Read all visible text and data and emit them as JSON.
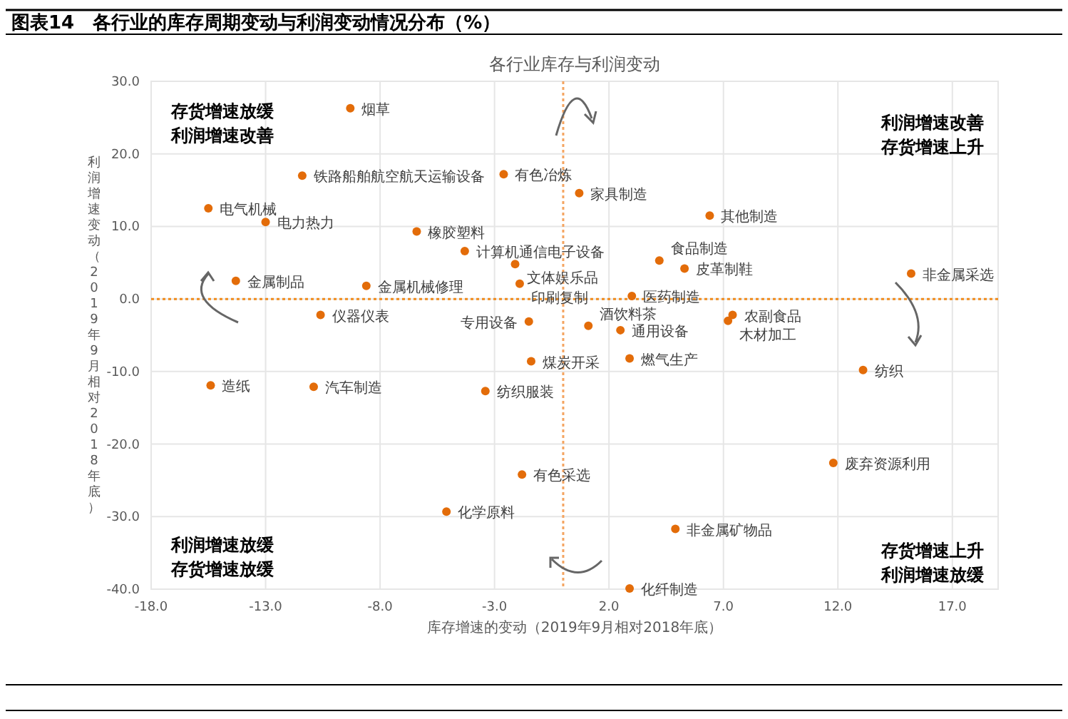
{
  "chart_data": {
    "type": "scatter",
    "title": "图表14　各行业的库存周期变动与利润变动情况分布（%）",
    "subtitle": "各行业库存与利润变动",
    "xlabel": "库存增速的变动（2019年9月相对2018年底）",
    "ylabel": "利润增速变动（2019年9月相对2018年底）",
    "xlim": [
      -18,
      19
    ],
    "ylim": [
      -40,
      30
    ],
    "xticks": [
      {
        "value": -18,
        "label": "-18.0"
      },
      {
        "value": -13,
        "label": "-13.0"
      },
      {
        "value": -8,
        "label": "-8.0"
      },
      {
        "value": -3,
        "label": "-3.0"
      },
      {
        "value": 2,
        "label": "2.0"
      },
      {
        "value": 7,
        "label": "7.0"
      },
      {
        "value": 12,
        "label": "12.0"
      },
      {
        "value": 17,
        "label": "17.0"
      }
    ],
    "yticks": [
      {
        "value": -40,
        "label": "-40.0"
      },
      {
        "value": -30,
        "label": "-30.0"
      },
      {
        "value": -20,
        "label": "-20.0"
      },
      {
        "value": -10,
        "label": "-10.0"
      },
      {
        "value": 0,
        "label": "0.0"
      },
      {
        "value": 10,
        "label": "10.0"
      },
      {
        "value": 20,
        "label": "20.0"
      },
      {
        "value": 30,
        "label": "30.0"
      }
    ],
    "grid": true,
    "marker": "circle",
    "series": [
      {
        "color": "#e36c09",
        "x": [
          -9.3,
          -11.4,
          -2.6,
          -15.5,
          -13.0,
          -6.4,
          -4.3,
          -2.1,
          -1.9,
          -14.3,
          -8.6,
          -10.6,
          -1.5,
          0.7,
          6.4,
          4.2,
          5.3,
          15.2,
          3.0,
          7.4,
          7.2,
          1.1,
          2.5,
          -1.4,
          2.9,
          13.1,
          -15.4,
          -10.9,
          -3.4,
          -1.8,
          -5.1,
          11.8,
          4.9,
          2.9
        ],
        "values": [
          26.3,
          17.0,
          17.2,
          12.5,
          10.6,
          9.3,
          6.6,
          4.8,
          2.1,
          2.5,
          1.8,
          -2.2,
          -3.1,
          14.6,
          11.5,
          5.3,
          4.2,
          3.5,
          0.4,
          -2.2,
          -3.0,
          -3.7,
          -4.3,
          -8.6,
          -8.2,
          -9.8,
          -11.9,
          -12.1,
          -12.7,
          -24.2,
          -29.3,
          -22.6,
          -31.7,
          -39.9
        ]
      }
    ],
    "ref_lines": [
      {
        "axis": "x",
        "value": 0,
        "color": "#f4a460",
        "line_style": "dotted"
      },
      {
        "axis": "y",
        "value": 0,
        "color": "#f08a1c",
        "line_style": "dotted"
      }
    ],
    "annotations": [
      "存货增速放缓利润增速改善",
      "利润增速改善存货增速上升",
      "利润增速放缓存货增速放缓",
      "存货增速上升利润增速放缓",
      {
        "text": "烟草",
        "x": -9.3,
        "y": 26.3
      },
      {
        "text": "铁路船舶航空航天运输设备",
        "x": -11.4,
        "y": 17.0
      },
      {
        "text": "有色冶炼",
        "x": -2.6,
        "y": 17.2
      },
      {
        "text": "电气机械",
        "x": -15.5,
        "y": 12.5
      },
      {
        "text": "电力热力",
        "x": -13.0,
        "y": 10.6
      },
      {
        "text": "橡胶塑料",
        "x": -6.4,
        "y": 9.3
      },
      {
        "text": "计算机通信电子设备",
        "x": -4.3,
        "y": 6.6
      },
      {
        "text": "文体娱乐品",
        "x": -2.1,
        "y": 4.8
      },
      {
        "text": "印刷复制",
        "x": -1.9,
        "y": 2.1
      },
      {
        "text": "金属制品",
        "x": -14.3,
        "y": 2.5
      },
      {
        "text": "金属机械修理",
        "x": -8.6,
        "y": 1.8
      },
      {
        "text": "仪器仪表",
        "x": -10.6,
        "y": -2.2
      },
      {
        "text": "专用设备",
        "x": -1.5,
        "y": -3.1
      },
      {
        "text": "家具制造",
        "x": 0.7,
        "y": 14.6
      },
      {
        "text": "其他制造",
        "x": 6.4,
        "y": 11.5
      },
      {
        "text": "食品制造",
        "x": 4.2,
        "y": 5.3
      },
      {
        "text": "皮革制鞋",
        "x": 5.3,
        "y": 4.2
      },
      {
        "text": "非金属采选",
        "x": 15.2,
        "y": 3.5
      },
      {
        "text": "医药制造",
        "x": 3.0,
        "y": 0.4
      },
      {
        "text": "农副食品",
        "x": 7.4,
        "y": -2.2
      },
      {
        "text": "木材加工",
        "x": 7.2,
        "y": -3.0
      },
      {
        "text": "酒饮料茶",
        "x": 1.1,
        "y": -3.7
      },
      {
        "text": "通用设备",
        "x": 2.5,
        "y": -4.3
      },
      {
        "text": "煤炭开采",
        "x": -1.4,
        "y": -8.6
      },
      {
        "text": "燃气生产",
        "x": 2.9,
        "y": -8.2
      },
      {
        "text": "纺织",
        "x": 13.1,
        "y": -9.8
      },
      {
        "text": "造纸",
        "x": -15.4,
        "y": -11.9
      },
      {
        "text": "汽车制造",
        "x": -10.9,
        "y": -12.1
      },
      {
        "text": "纺织服装",
        "x": -3.4,
        "y": -12.7
      },
      {
        "text": "有色采选",
        "x": -1.8,
        "y": -24.2
      },
      {
        "text": "化学原料",
        "x": -5.1,
        "y": -29.3
      },
      {
        "text": "废弃资源利用",
        "x": 11.8,
        "y": -22.6
      },
      {
        "text": "非金属矿物品",
        "x": 4.9,
        "y": -31.7
      },
      {
        "text": "化纤制造",
        "x": 2.9,
        "y": -39.9
      }
    ]
  }
}
